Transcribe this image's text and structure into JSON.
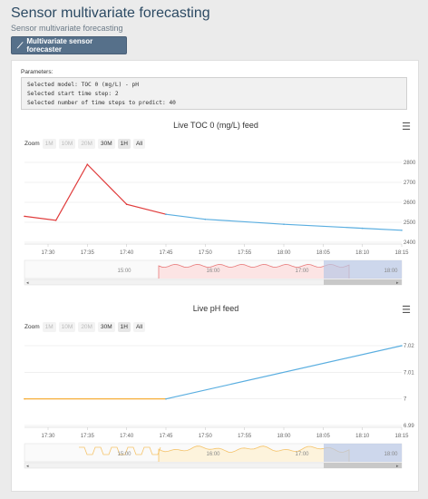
{
  "page": {
    "title": "Sensor multivariate forecasting",
    "subtitle": "Sensor multivariate forecasting",
    "button_label": "Multivariate sensor forecaster",
    "button_icon": "line-chart-icon"
  },
  "params": {
    "label": "Parameters:",
    "lines": [
      "Selected model: TOC 0 (mg/L) - pH",
      "Selected start time step: 2",
      "Selected number of time steps to predict: 40"
    ]
  },
  "zoom": {
    "label": "Zoom",
    "buttons": [
      "1M",
      "10M",
      "20M",
      "30M",
      "1H",
      "All"
    ]
  },
  "colors": {
    "red": "#e03c3c",
    "blue": "#5aaee0",
    "orange": "#f5a623",
    "navigator_blue": "#b9c8e6",
    "grid": "#e6e6e6"
  },
  "chart_data": [
    {
      "type": "line",
      "title": "Live TOC 0 (mg/L) feed",
      "x_ticks": [
        "17:30",
        "17:35",
        "17:40",
        "17:45",
        "17:50",
        "17:55",
        "18:00",
        "18:05",
        "18:10",
        "18:15"
      ],
      "y_ticks": [
        "2800",
        "2700",
        "2600",
        "2500",
        "2400"
      ],
      "ylim": [
        2400,
        2800
      ],
      "series": [
        {
          "x": [
            "17:27",
            "17:31",
            "17:35",
            "17:40",
            "17:45"
          ],
          "y": [
            2530,
            2510,
            2790,
            2590,
            2540
          ]
        },
        {
          "x": [
            "17:45",
            "17:50",
            "18:00",
            "18:10",
            "18:15"
          ],
          "y": [
            2540,
            2515,
            2490,
            2470,
            2460
          ]
        }
      ],
      "navigator_ticks": [
        "15:00",
        "16:00",
        "17:00",
        "18:00"
      ]
    },
    {
      "type": "line",
      "title": "Live pH feed",
      "x_ticks": [
        "17:30",
        "17:35",
        "17:40",
        "17:45",
        "17:50",
        "17:55",
        "18:00",
        "18:05",
        "18:10",
        "18:15"
      ],
      "y_ticks": [
        "7.02",
        "7.01",
        "7",
        "6.99"
      ],
      "ylim": [
        6.99,
        7.02
      ],
      "series": [
        {
          "x": [
            "17:27",
            "17:45"
          ],
          "y": [
            7.0,
            7.0
          ]
        },
        {
          "x": [
            "17:45",
            "18:15"
          ],
          "y": [
            7.0,
            7.02
          ]
        }
      ],
      "navigator_ticks": [
        "15:00",
        "16:00",
        "17:00",
        "18:00"
      ]
    }
  ]
}
